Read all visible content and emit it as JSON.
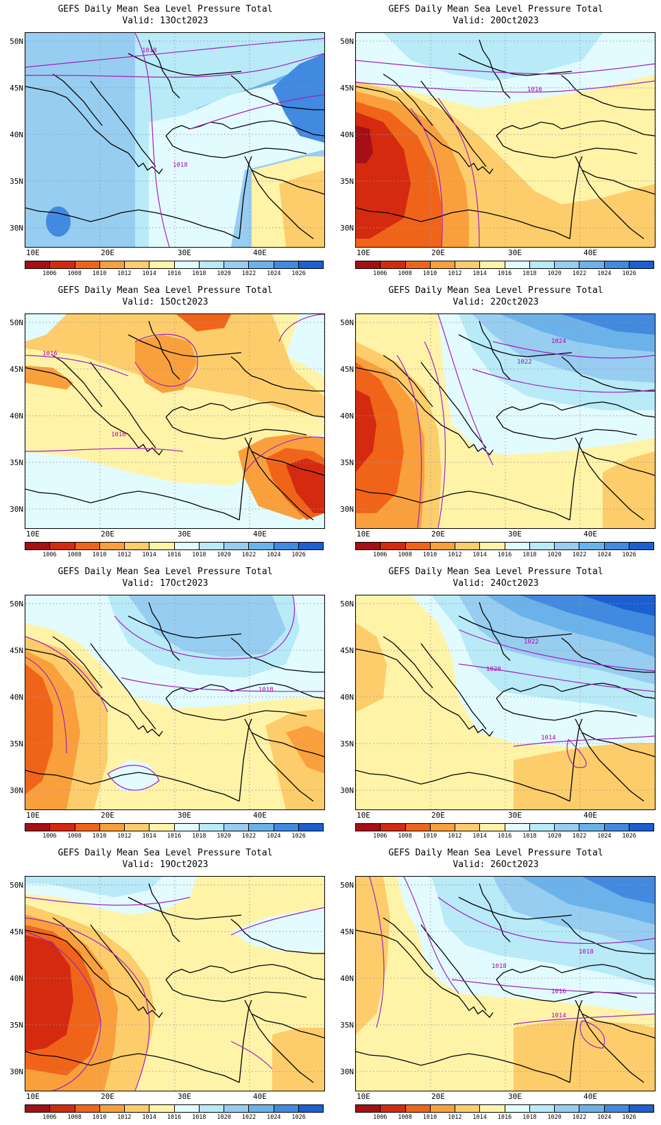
{
  "colors": {
    "p1006": "#a50f15",
    "p1008": "#d42a10",
    "p1010": "#f0641a",
    "p1012": "#f9a03c",
    "p1014": "#fdcd6b",
    "p1016": "#fff3a8",
    "p1018": "#e2fbff",
    "p1020": "#b8eaf8",
    "p1022": "#97cdf0",
    "p1024": "#6cb2ea",
    "p1026": "#4289e0",
    "p1028": "#1c5fd0",
    "contour": "#a020c0",
    "coast": "#000000"
  },
  "colorbar": {
    "labels": [
      "1006",
      "1008",
      "1010",
      "1012",
      "1014",
      "1016",
      "1018",
      "1020",
      "1022",
      "1024",
      "1026"
    ]
  },
  "axes": {
    "lat_labels": [
      "50N",
      "45N",
      "40N",
      "35N",
      "30N"
    ],
    "lon_labels": [
      "10E",
      "20E",
      "30E",
      "40E"
    ]
  },
  "panels": [
    {
      "title": "GEFS Daily Mean Sea Level Pressure Total",
      "valid": "Valid: 13Oct2023",
      "contour_labels": [
        "1018",
        "1018"
      ]
    },
    {
      "title": "GEFS Daily Mean Sea Level Pressure Total",
      "valid": "Valid: 20Oct2023",
      "contour_labels": [
        "1016"
      ]
    },
    {
      "title": "GEFS Daily Mean Sea Level Pressure Total",
      "valid": "Valid: 15Oct2023",
      "contour_labels": [
        "1016",
        "1016"
      ]
    },
    {
      "title": "GEFS Daily Mean Sea Level Pressure Total",
      "valid": "Valid: 22Oct2023",
      "contour_labels": [
        "1024",
        "1022"
      ]
    },
    {
      "title": "GEFS Daily Mean Sea Level Pressure Total",
      "valid": "Valid: 17Oct2023",
      "contour_labels": [
        "1018"
      ]
    },
    {
      "title": "GEFS Daily Mean Sea Level Pressure Total",
      "valid": "Valid: 24Oct2023",
      "contour_labels": [
        "1022",
        "1020",
        "1014"
      ]
    },
    {
      "title": "GEFS Daily Mean Sea Level Pressure Total",
      "valid": "Valid: 19Oct2023",
      "contour_labels": []
    },
    {
      "title": "GEFS Daily Mean Sea Level Pressure Total",
      "valid": "Valid: 26Oct2023",
      "contour_labels": [
        "1018",
        "1018",
        "1016",
        "1014"
      ]
    }
  ]
}
